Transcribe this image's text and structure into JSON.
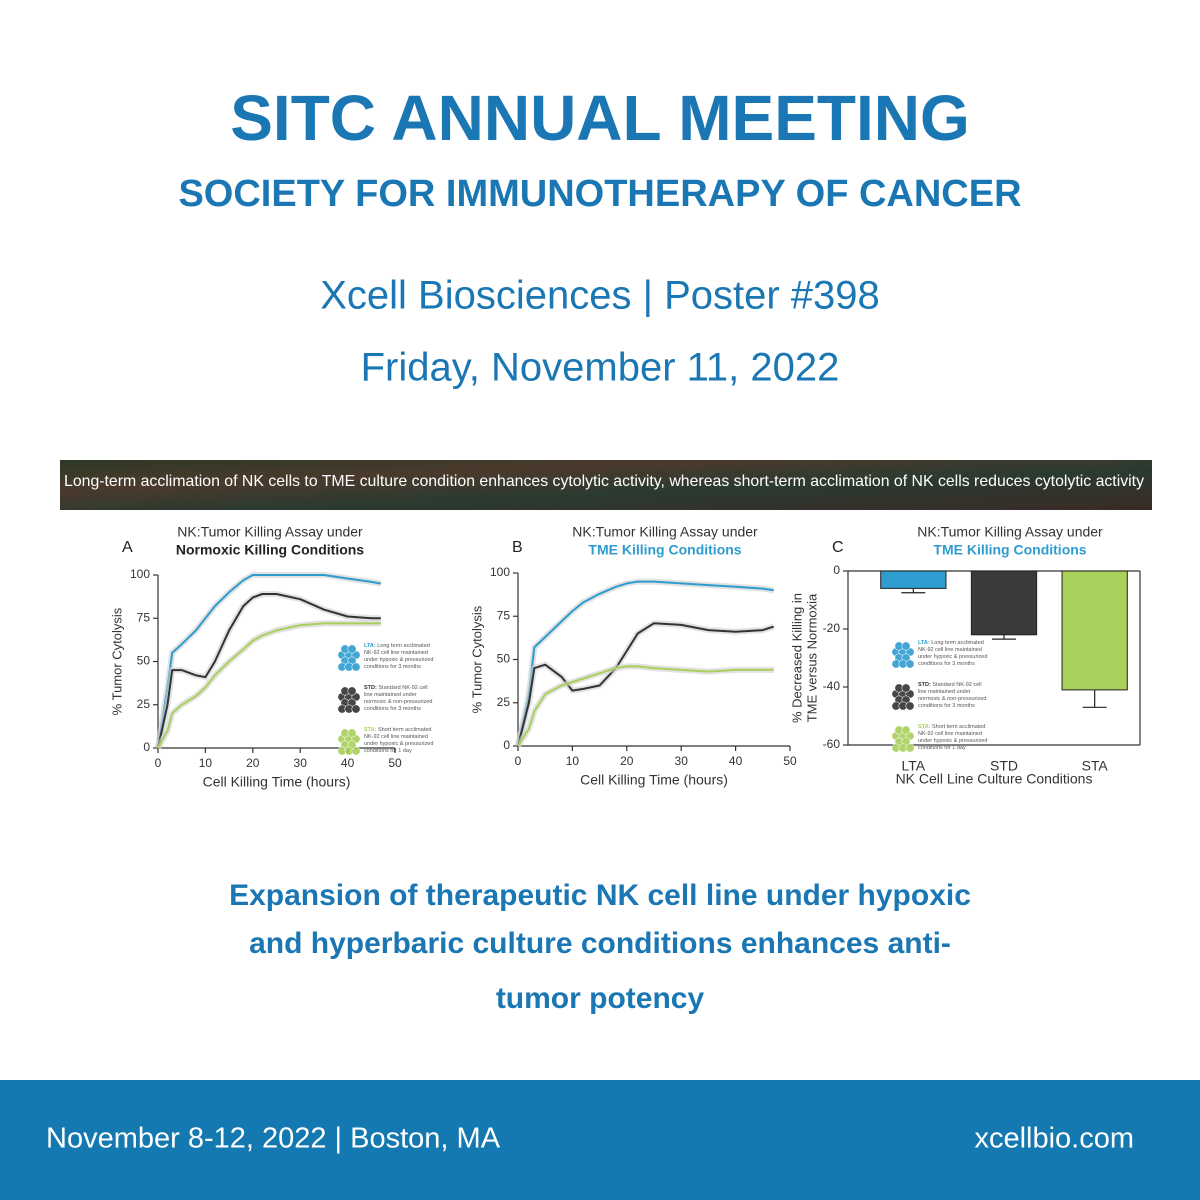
{
  "header": {
    "title": "SITC ANNUAL MEETING",
    "subtitle": "SOCIETY FOR IMMUNOTHERAPY OF CANCER",
    "presenter": "Xcell Biosciences | Poster #398",
    "date": "Friday, November 11, 2022"
  },
  "banner": "Long-term acclimation of NK cells to TME culture condition enhances cytolytic activity, whereas short-term acclimation of NK cells reduces cytolytic activity",
  "chart_data": [
    {
      "type": "line",
      "panel": "A",
      "title": "NK:Tumor Killing Assay under",
      "title_emphasis": "Normoxic Killing Conditions",
      "title_emphasis_color": "#222222",
      "x": [
        0,
        2,
        3,
        5,
        8,
        10,
        12,
        15,
        18,
        20,
        22,
        25,
        30,
        35,
        40,
        45,
        47
      ],
      "series": [
        {
          "name": "LTA:",
          "color": "#2e9ccf",
          "description": "Long term acclimated NK-92 cell line maintained under hypoxic & pressurized conditions for 3 months",
          "values": [
            0,
            35,
            55,
            60,
            68,
            75,
            82,
            90,
            97,
            100,
            100,
            100,
            100,
            100,
            98,
            96,
            95
          ]
        },
        {
          "name": "STD:",
          "color": "#333333",
          "description": "Standard NK-92 cell line maintained under normoxic & non-pressurized conditions for 3 months",
          "values": [
            0,
            25,
            45,
            45,
            42,
            41,
            50,
            68,
            82,
            87,
            89,
            89,
            86,
            80,
            76,
            75,
            75
          ]
        },
        {
          "name": "STA:",
          "color": "#a9d05a",
          "description": "Short term acclimated NK-92 cell line maintained under hypoxic & pressurized conditions for 1 day",
          "values": [
            0,
            10,
            20,
            25,
            30,
            35,
            42,
            50,
            57,
            62,
            65,
            68,
            71,
            72,
            72,
            72,
            72
          ]
        }
      ],
      "xlim": [
        0,
        50
      ],
      "xticks": [
        0,
        10,
        20,
        30,
        40,
        50
      ],
      "ylim": [
        0,
        100
      ],
      "yticks": [
        0,
        25,
        50,
        75,
        100
      ],
      "x_label": "Cell Killing Time (hours)",
      "y_label": "% Tumor Cytolysis"
    },
    {
      "type": "line",
      "panel": "B",
      "title": "NK:Tumor Killing Assay under",
      "title_emphasis": "TME Killing Conditions",
      "title_emphasis_color": "#2e9ccf",
      "x": [
        0,
        2,
        3,
        5,
        8,
        10,
        12,
        15,
        18,
        20,
        22,
        25,
        30,
        35,
        40,
        45,
        47
      ],
      "series": [
        {
          "color": "#2e9ccf",
          "values": [
            0,
            30,
            57,
            63,
            72,
            78,
            83,
            88,
            92,
            94,
            95,
            95,
            94,
            93,
            92,
            91,
            90
          ]
        },
        {
          "color": "#333333",
          "values": [
            0,
            25,
            45,
            47,
            40,
            32,
            33,
            35,
            45,
            55,
            65,
            71,
            70,
            67,
            66,
            67,
            69
          ]
        },
        {
          "color": "#a9d05a",
          "values": [
            0,
            10,
            20,
            30,
            35,
            37,
            39,
            42,
            45,
            46,
            46,
            45,
            44,
            43,
            44,
            44,
            44
          ]
        }
      ],
      "xlim": [
        0,
        50
      ],
      "xticks": [
        0,
        10,
        20,
        30,
        40,
        50
      ],
      "ylim": [
        0,
        100
      ],
      "yticks": [
        0,
        25,
        50,
        75,
        100
      ],
      "x_label": "Cell Killing Time (hours)",
      "y_label": "% Tumor Cytolysis"
    },
    {
      "type": "bar",
      "panel": "C",
      "title": "NK:Tumor Killing Assay under",
      "title_emphasis": "TME Killing Conditions",
      "title_emphasis_color": "#2e9ccf",
      "categories": [
        "LTA",
        "STD",
        "STA"
      ],
      "values": [
        -6,
        -22,
        -41
      ],
      "errors": [
        1.5,
        1.5,
        6
      ],
      "colors": [
        "#2e9ccf",
        "#3a3a3a",
        "#a9d05a"
      ],
      "legend": [
        {
          "name": "LTA:",
          "color": "#2e9ccf",
          "description": "Long term acclimated NK-92 cell line maintained under hypoxic & pressurized conditions for 3 months"
        },
        {
          "name": "STD:",
          "color": "#333333",
          "description": "Standard NK-92 cell line maintained under normoxic & non-pressurized conditions for 3 months"
        },
        {
          "name": "STA:",
          "color": "#a9d05a",
          "description": "Short term acclimated NK-92 cell line maintained under hypoxic & pressurized conditions for 1 day"
        }
      ],
      "ylim": [
        -60,
        0
      ],
      "yticks": [
        -60,
        -40,
        -20,
        0
      ],
      "x_label": "NK Cell Line Culture Conditions",
      "y_label": [
        "% Decreased Killing in",
        "TME versus Normoxia"
      ]
    }
  ],
  "headline": [
    "Expansion of therapeutic NK cell line under hypoxic",
    "and hyperbaric culture conditions enhances anti-",
    "tumor potency"
  ],
  "footer": {
    "event": "November 8-12, 2022 | Boston, MA",
    "website": "xcellbio.com"
  }
}
